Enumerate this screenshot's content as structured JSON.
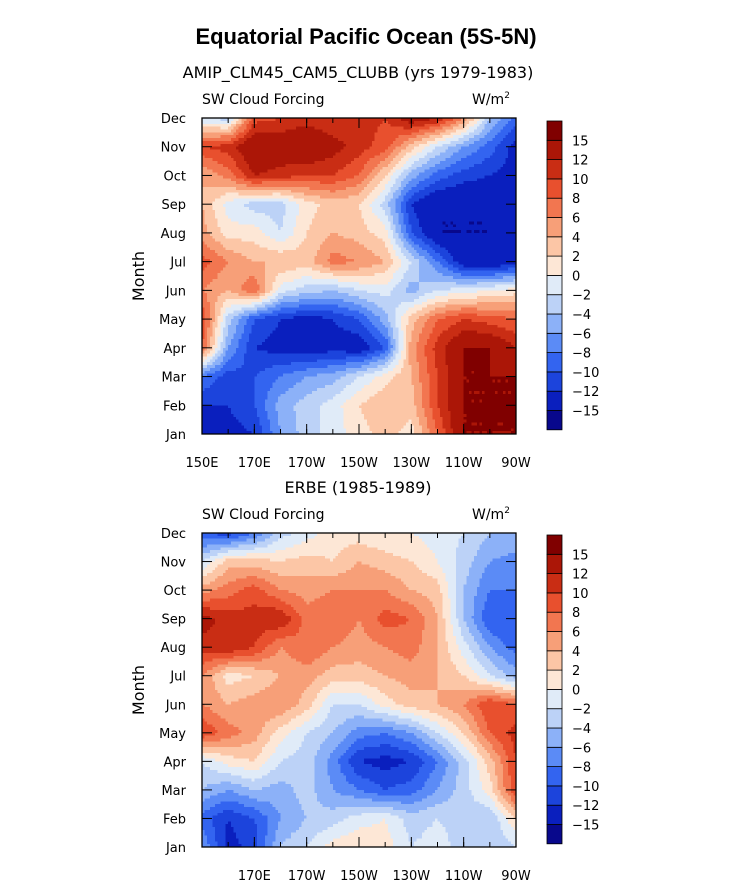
{
  "figure": {
    "title": "Equatorial Pacific Ocean (5S-5N)"
  },
  "colorbar": {
    "levels": [
      -15,
      -12,
      -10,
      -8,
      -6,
      -4,
      -2,
      0,
      2,
      4,
      6,
      8,
      10,
      12,
      15
    ],
    "colors": [
      "#08088c",
      "#0a1fbe",
      "#1c44dc",
      "#3364f0",
      "#5b8bf6",
      "#8cb1f8",
      "#bcd2f7",
      "#e0ebf8",
      "#fde7d6",
      "#fcc6a6",
      "#f79f78",
      "#f27650",
      "#e8502e",
      "#c92d14",
      "#ab1607",
      "#800000"
    ]
  },
  "chart_data": [
    {
      "type": "heatmap",
      "title": "AMIP_CLM45_CAM5_CLUBB (yrs 1979-1983)",
      "left_label": "SW Cloud Forcing",
      "units_label": "W/m",
      "units_exp": "2",
      "ylabel": "Month",
      "xlabel": "",
      "xlim": [
        150,
        270
      ],
      "x_ticks": [
        150,
        170,
        190,
        210,
        230,
        250,
        270
      ],
      "x_tick_labels": [
        "150E",
        "170E",
        "170W",
        "150W",
        "130W",
        "110W",
        "90W"
      ],
      "y_tick_labels": [
        "Jan",
        "Feb",
        "Mar",
        "Apr",
        "May",
        "Jun",
        "Jul",
        "Aug",
        "Sep",
        "Oct",
        "Nov",
        "Dec"
      ],
      "x": [
        150,
        160,
        170,
        180,
        190,
        200,
        210,
        220,
        230,
        240,
        250,
        260,
        270
      ],
      "z": [
        [
          -14,
          -13,
          -12,
          -6,
          -3,
          -1,
          1,
          3,
          1,
          8,
          15,
          15,
          15
        ],
        [
          -12,
          -12,
          -10,
          -5,
          -3,
          -1,
          2,
          4,
          3,
          10,
          15,
          15,
          15
        ],
        [
          -8,
          -11,
          -10,
          -8,
          -6,
          -5,
          -2,
          1,
          4,
          10,
          15,
          15,
          15
        ],
        [
          8,
          -6,
          -12,
          -13,
          -14,
          -13,
          -14,
          -10,
          5,
          11,
          15,
          15,
          12
        ],
        [
          10,
          -3,
          -10,
          -12,
          -13,
          -12,
          -10,
          -5,
          3,
          8,
          10,
          9,
          8
        ],
        [
          6,
          4,
          8,
          -1,
          -3,
          -4,
          -2,
          -1,
          -5,
          -2,
          -1,
          0,
          1
        ],
        [
          9,
          6,
          4,
          4,
          3,
          7,
          6,
          4,
          -2,
          -8,
          -14,
          -15,
          -13
        ],
        [
          5,
          1,
          1,
          -2,
          2,
          4,
          3,
          1,
          -10,
          -15,
          -15,
          -15,
          -13
        ],
        [
          4,
          -1,
          -3,
          -3,
          1,
          3,
          2,
          -3,
          -12,
          -15,
          -15,
          -15,
          -14
        ],
        [
          4,
          7,
          12,
          11,
          10,
          10,
          8,
          2,
          -5,
          -9,
          -11,
          -12,
          -13
        ],
        [
          10,
          11,
          15,
          14,
          15,
          13,
          11,
          9,
          3,
          -2,
          -6,
          -9,
          -13
        ],
        [
          -2,
          -3,
          9,
          10,
          11,
          10,
          11,
          10,
          14,
          12,
          6,
          -4,
          -9
        ]
      ]
    },
    {
      "type": "heatmap",
      "title": "ERBE (1985-1989)",
      "left_label": "SW Cloud Forcing",
      "units_label": "W/m",
      "units_exp": "2",
      "ylabel": "Month",
      "xlabel": "",
      "xlim": [
        150,
        270
      ],
      "x_ticks": [
        170,
        190,
        210,
        230,
        250,
        270
      ],
      "x_tick_labels": [
        "170E",
        "170W",
        "150W",
        "130W",
        "110W",
        "90W"
      ],
      "y_tick_labels": [
        "Jan",
        "Feb",
        "Mar",
        "Apr",
        "May",
        "Jun",
        "Jul",
        "Aug",
        "Sep",
        "Oct",
        "Nov",
        "Dec"
      ],
      "x": [
        150,
        160,
        170,
        180,
        190,
        200,
        210,
        220,
        230,
        240,
        250,
        260,
        270
      ],
      "z": [
        [
          -6,
          -13,
          -11,
          -4,
          -2,
          1,
          2,
          1,
          -2,
          -1,
          -3,
          -4,
          -2
        ],
        [
          -9,
          -12,
          -10,
          -6,
          -4,
          -3,
          -1,
          0,
          -3,
          -2,
          -3,
          -4,
          2
        ],
        [
          -4,
          -6,
          -4,
          -5,
          -3,
          -6,
          -8,
          -10,
          -9,
          -6,
          -3,
          1,
          10
        ],
        [
          -2,
          1,
          2,
          -2,
          -3,
          -7,
          -12,
          -13,
          -12,
          -8,
          -3,
          3,
          10
        ],
        [
          10,
          7,
          5,
          1,
          -2,
          -4,
          -7,
          -8,
          -6,
          -2,
          2,
          8,
          11
        ],
        [
          6,
          4,
          5,
          6,
          3,
          -2,
          -2,
          1,
          3,
          4,
          6,
          10,
          8
        ],
        [
          6,
          1,
          2,
          4,
          5,
          3,
          3,
          4,
          5,
          4,
          2,
          -2,
          -5
        ],
        [
          11,
          12,
          10,
          6,
          8,
          6,
          5,
          6,
          7,
          4,
          -1,
          -6,
          -9
        ],
        [
          13,
          11,
          11,
          12,
          7,
          8,
          6,
          9,
          8,
          4,
          -4,
          -10,
          -10
        ],
        [
          5,
          7,
          9,
          6,
          5,
          6,
          6,
          6,
          4,
          3,
          -4,
          -8,
          -8
        ],
        [
          -2,
          3,
          3,
          2,
          3,
          2,
          4,
          3,
          2,
          0,
          -3,
          -6,
          -7
        ],
        [
          -10,
          -11,
          -8,
          -3,
          -1,
          1,
          1,
          0,
          0,
          -1,
          -2,
          -4,
          -4
        ]
      ]
    }
  ]
}
